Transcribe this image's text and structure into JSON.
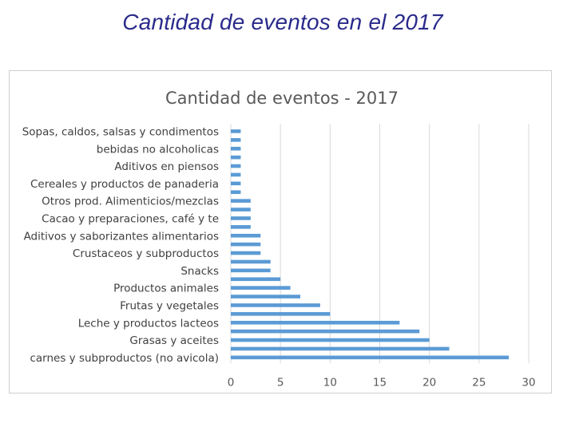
{
  "slide": {
    "title": "Cantidad de eventos en el 2017"
  },
  "chart_data": {
    "type": "bar",
    "orientation": "horizontal",
    "title": "Cantidad de eventos - 2017",
    "xlabel": "",
    "ylabel": "",
    "xlim": [
      0,
      30
    ],
    "xticks": [
      0,
      5,
      10,
      15,
      20,
      25,
      30
    ],
    "grid": "vertical",
    "bar_color": "#5b9bd5",
    "grid_color": "#d9d9d9",
    "categories_top_to_bottom": [
      "Sopas, caldos, salsas y condimentos",
      "",
      "bebidas no alcoholicas",
      "",
      "Aditivos en piensos",
      "",
      "Cereales y productos de panaderia",
      "",
      "Otros prod. Alimenticios/mezclas",
      "",
      "Cacao y preparaciones, café y te",
      "",
      "Aditivos y saborizantes alimentarios",
      "",
      "Crustaceos y subproductos",
      "",
      "Snacks",
      "",
      "Productos animales",
      "",
      "Frutas y vegetales",
      "",
      "Leche y productos lacteos",
      "",
      "Grasas y aceites",
      "",
      "carnes y subproductos (no avicola)"
    ],
    "values_top_to_bottom": [
      1,
      1,
      1,
      1,
      1,
      1,
      1,
      1,
      2,
      2,
      2,
      2,
      3,
      3,
      3,
      4,
      4,
      5,
      6,
      7,
      9,
      10,
      17,
      19,
      20,
      22,
      28
    ]
  }
}
